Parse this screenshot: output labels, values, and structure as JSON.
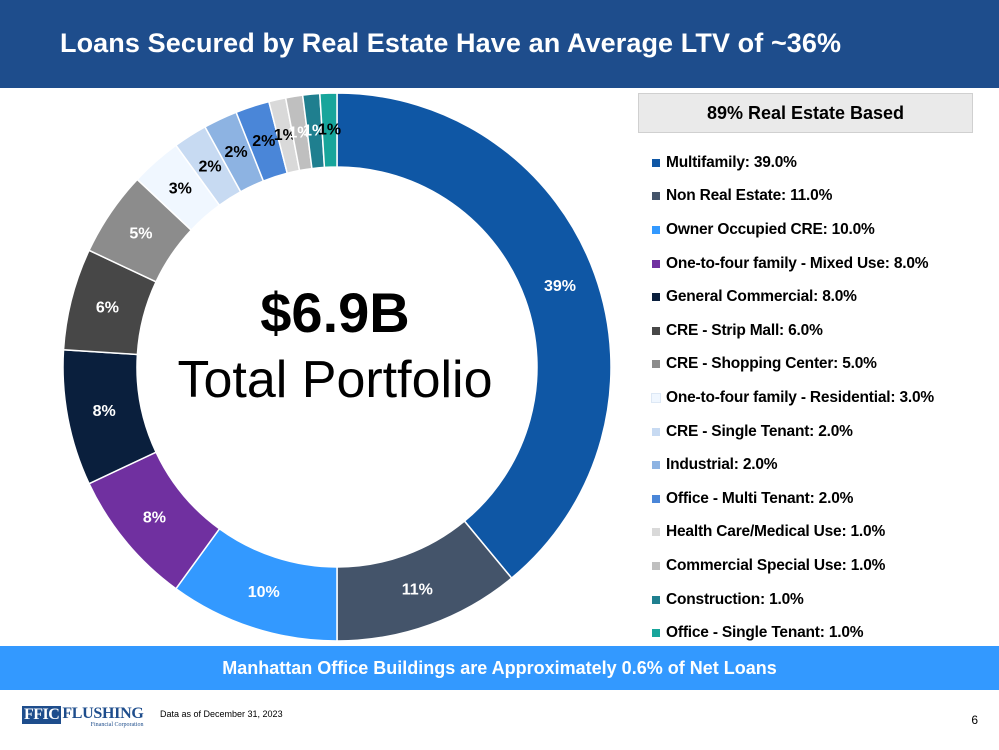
{
  "header": {
    "title": "Loans Secured by Real Estate Have an Average LTV of ~36%"
  },
  "center": {
    "value": "$6.9B",
    "label": "Total Portfolio"
  },
  "legend": {
    "title": "89% Real Estate Based"
  },
  "chart_data": {
    "type": "pie",
    "categories": [
      "Multifamily: 39.0%",
      "Non Real Estate: 11.0%",
      "Owner Occupied CRE: 10.0%",
      "One-to-four family - Mixed Use: 8.0%",
      "General Commercial: 8.0%",
      "CRE - Strip Mall: 6.0%",
      "CRE - Shopping Center: 5.0%",
      "One-to-four family - Residential: 3.0%",
      "CRE - Single Tenant: 2.0%",
      "Industrial: 2.0%",
      "Office - Multi Tenant: 2.0%",
      "Health Care/Medical Use: 1.0%",
      "Commercial Special Use: 1.0%",
      "Construction: 1.0%",
      "Office - Single Tenant: 1.0%"
    ],
    "values": [
      39,
      11,
      10,
      8,
      8,
      6,
      5,
      3,
      2,
      2,
      2,
      1,
      1,
      1,
      1
    ],
    "data_labels": [
      "39%",
      "11%",
      "10%",
      "8%",
      "8%",
      "6%",
      "5%",
      "3%",
      "2%",
      "2%",
      "2%",
      "1%",
      "1%",
      "1%",
      "1%"
    ],
    "colors": [
      "#0f57a5",
      "#44546a",
      "#3399ff",
      "#7030a0",
      "#0a1f3d",
      "#474747",
      "#8c8c8c",
      "#f0f7ff",
      "#c7daf2",
      "#8db3e2",
      "#4a86d8",
      "#d9d9d9",
      "#bfbfbf",
      "#1f7f8f",
      "#17a59b"
    ],
    "label_colors": [
      "#ffffff",
      "#ffffff",
      "#ffffff",
      "#ffffff",
      "#ffffff",
      "#ffffff",
      "#ffffff",
      "#000000",
      "#000000",
      "#000000",
      "#000000",
      "#000000",
      "#ffffff",
      "#ffffff",
      "#000000"
    ],
    "legend_position": "right"
  },
  "banner": {
    "text": "Manhattan Office Buildings are Approximately 0.6% of Net Loans"
  },
  "footer": {
    "logo_mark": "FFIC",
    "logo_name": "FLUSHING",
    "logo_sub": "Financial Corporation",
    "note": "Data as of December 31, 2023",
    "page": "6"
  }
}
